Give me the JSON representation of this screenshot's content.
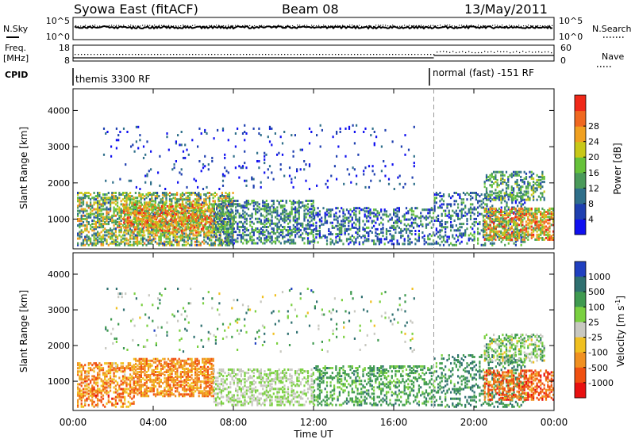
{
  "header": {
    "radar": "Syowa East (fitACF)",
    "beam": "Beam 08",
    "date": "13/May/2011"
  },
  "strip": {
    "nsky_label": "N.Sky",
    "nsky_ticks": [
      "10^5",
      "10^0"
    ],
    "nsearch_label": "N.Search",
    "nsearch_ticks": [
      "10^5",
      "10^0"
    ],
    "freq_label_1": "Freq.",
    "freq_label_2": "[MHz]",
    "freq_ticks": [
      "18",
      "8"
    ],
    "nave_label": "Nave",
    "nave_ticks": [
      "60",
      "0"
    ],
    "cpid_label": "CPID",
    "cpid_modes": [
      "themis 3300 RF",
      "normal (fast) -151 RF"
    ],
    "mode_change_time": "18:00"
  },
  "chart_data": [
    {
      "type": "heatmap",
      "title": "",
      "xlabel": "",
      "ylabel": "Slant Range [km]",
      "x_ticks": [
        "00:00",
        "04:00",
        "08:00",
        "12:00",
        "16:00",
        "20:00",
        "00:00"
      ],
      "xlim_hours": [
        0,
        24
      ],
      "y_ticks": [
        1000,
        2000,
        3000,
        4000
      ],
      "ylim_km": [
        180,
        4600
      ],
      "colorbar": {
        "label": "Power [dB]",
        "ticks": [
          "4",
          "8",
          "12",
          "16",
          "20",
          "24",
          "28"
        ],
        "colors": [
          "#1010f0",
          "#1e3fb0",
          "#2f6f8a",
          "#4a9a5a",
          "#66c23a",
          "#c8c818",
          "#f0a020",
          "#f06820",
          "#f02818"
        ]
      },
      "scatter_regions": [
        {
          "t": [
            0.2,
            8.0
          ],
          "r": [
            250,
            1700
          ],
          "level": [
            0.2,
            0.8
          ],
          "density": 0.55
        },
        {
          "t": [
            2.5,
            7.0
          ],
          "r": [
            600,
            1400
          ],
          "level": [
            0.45,
            0.95
          ],
          "density": 0.5
        },
        {
          "t": [
            7.0,
            12.0
          ],
          "r": [
            300,
            1500
          ],
          "level": [
            0.1,
            0.55
          ],
          "density": 0.45
        },
        {
          "t": [
            12.0,
            18.0
          ],
          "r": [
            280,
            1300
          ],
          "level": [
            0.05,
            0.5
          ],
          "density": 0.35
        },
        {
          "t": [
            18.0,
            22.5
          ],
          "r": [
            250,
            1700
          ],
          "level": [
            0.05,
            0.5
          ],
          "density": 0.3
        },
        {
          "t": [
            20.5,
            24.0
          ],
          "r": [
            400,
            1300
          ],
          "level": [
            0.35,
            0.95
          ],
          "density": 0.6
        },
        {
          "t": [
            20.5,
            23.5
          ],
          "r": [
            1500,
            2300
          ],
          "level": [
            0.2,
            0.6
          ],
          "density": 0.4
        },
        {
          "t": [
            1.5,
            17.0
          ],
          "r": [
            1800,
            3600
          ],
          "level": [
            0.0,
            0.3
          ],
          "density": 0.04
        }
      ]
    },
    {
      "type": "heatmap",
      "title": "",
      "xlabel": "Time UT",
      "ylabel": "Slant Range [km]",
      "x_ticks": [
        "00:00",
        "04:00",
        "08:00",
        "12:00",
        "16:00",
        "20:00",
        "00:00"
      ],
      "xlim_hours": [
        0,
        24
      ],
      "y_ticks": [
        1000,
        2000,
        3000,
        4000
      ],
      "ylim_km": [
        180,
        4600
      ],
      "colorbar": {
        "label": "Velocity [m s^-1]",
        "ticks": [
          "1000",
          "500",
          "100",
          "25",
          "-25",
          "-100",
          "-500",
          "-1000"
        ],
        "colors": [
          "#2040c0",
          "#2f7070",
          "#3f9a50",
          "#7ad040",
          "#c8c8c0",
          "#f0c020",
          "#f09020",
          "#f05010",
          "#e81010"
        ]
      },
      "scatter_regions": [
        {
          "t": [
            0.2,
            3.0
          ],
          "r": [
            250,
            1500
          ],
          "level": [
            0.55,
            0.9
          ],
          "density": 0.5
        },
        {
          "t": [
            3.0,
            7.0
          ],
          "r": [
            550,
            1600
          ],
          "level": [
            0.6,
            0.85
          ],
          "density": 0.6
        },
        {
          "t": [
            7.0,
            12.0
          ],
          "r": [
            300,
            1300
          ],
          "level": [
            0.4,
            0.5
          ],
          "density": 0.45
        },
        {
          "t": [
            12.0,
            18.0
          ],
          "r": [
            300,
            1400
          ],
          "level": [
            0.2,
            0.38
          ],
          "density": 0.35
        },
        {
          "t": [
            18.0,
            22.5
          ],
          "r": [
            250,
            1700
          ],
          "level": [
            0.15,
            0.35
          ],
          "density": 0.3
        },
        {
          "t": [
            20.5,
            24.0
          ],
          "r": [
            450,
            1300
          ],
          "level": [
            0.65,
            0.95
          ],
          "density": 0.55
        },
        {
          "t": [
            20.5,
            23.5
          ],
          "r": [
            1500,
            2300
          ],
          "level": [
            0.2,
            0.6
          ],
          "density": 0.4
        },
        {
          "t": [
            1.5,
            17.0
          ],
          "r": [
            1800,
            3600
          ],
          "level": [
            0.1,
            0.6
          ],
          "density": 0.04
        }
      ]
    }
  ]
}
